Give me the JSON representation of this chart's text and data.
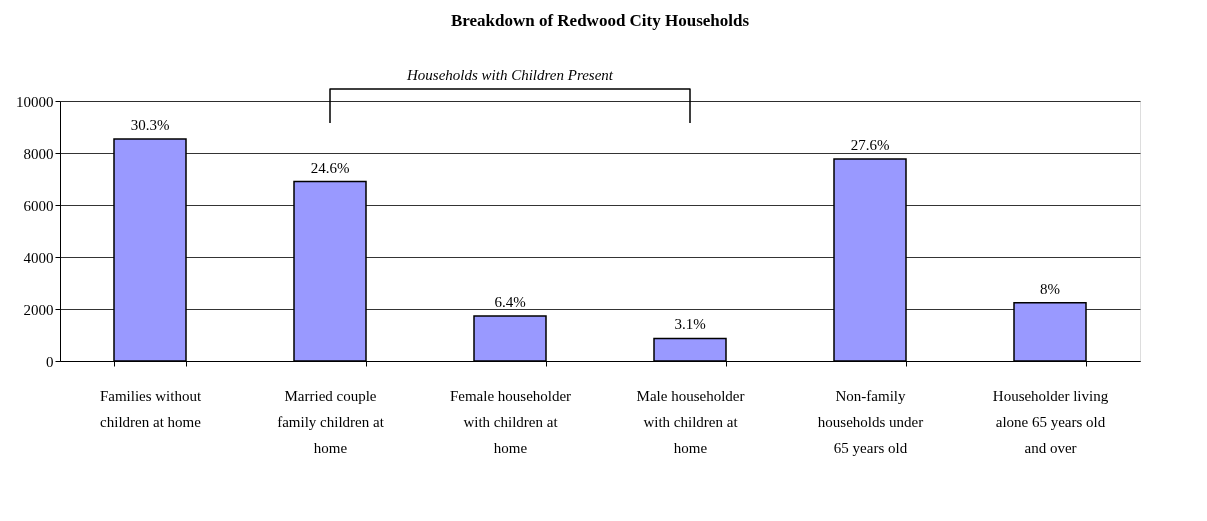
{
  "chart_data": {
    "type": "bar",
    "title": "Breakdown of Redwood City Households",
    "annotations": [
      "Households with Children Present",
      {
        "text": "30.3%",
        "x": "Families without children at home",
        "y": 8540
      },
      {
        "text": "24.6%",
        "x": "Married couple family children at home",
        "y": 6900
      },
      {
        "text": "6.4%",
        "x": "Female householder with children at home",
        "y": 1730
      },
      {
        "text": "3.1%",
        "x": "Male householder with children at home",
        "y": 870
      },
      {
        "text": "27.6%",
        "x": "Non-family households under 65 years old",
        "y": 7770
      },
      {
        "text": "8%",
        "x": "Householder living alone 65 years old and over",
        "y": 2240
      }
    ],
    "categories": [
      "Families without children at home",
      "Married couple family children at home",
      "Female householder with children at home",
      "Male householder with children at home",
      "Non-family households under 65 years old",
      "Householder living alone 65 years old and over"
    ],
    "values": [
      8540,
      6900,
      1730,
      870,
      7770,
      2240
    ],
    "color": "#9999ff",
    "ylim": [
      0,
      10000
    ],
    "yticks": [
      0,
      2000,
      4000,
      6000,
      8000,
      10000
    ],
    "grid": "y"
  }
}
